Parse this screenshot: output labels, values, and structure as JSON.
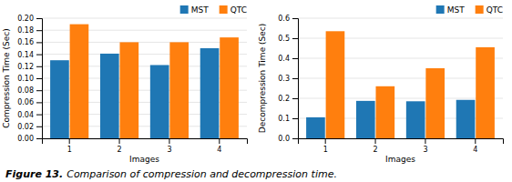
{
  "chart_data": [
    {
      "type": "bar",
      "categories": [
        "1",
        "2",
        "3",
        "4"
      ],
      "x_label": "Images",
      "y_label": "Compression Time (Sec)",
      "series": [
        {
          "name": "MST",
          "values": [
            0.13,
            0.141,
            0.122,
            0.15
          ]
        },
        {
          "name": "QTC",
          "values": [
            0.19,
            0.16,
            0.16,
            0.168
          ]
        }
      ],
      "ylim": [
        0,
        0.2
      ],
      "yticks": [
        {
          "value": 0,
          "label": "0.00"
        },
        0.02,
        0.04,
        0.06,
        0.08,
        {
          "value": 0.1,
          "label": "0.10"
        },
        0.12,
        0.14,
        0.16,
        0.18,
        {
          "value": 0.2,
          "label": "0.20"
        }
      ],
      "grid": true,
      "legend": "upper right",
      "annotations": [
        "Figure 13.",
        "Comparison of compression and decompression time."
      ]
    },
    {
      "type": "bar",
      "categories": [
        "1",
        "2",
        "3",
        "4"
      ],
      "x_label": "Images",
      "y_label": "Decompression Time (Sec)",
      "series": [
        {
          "name": "MST",
          "values": [
            0.105,
            0.187,
            0.185,
            0.192
          ]
        },
        {
          "name": "QTC",
          "values": [
            0.535,
            0.26,
            0.35,
            0.455
          ]
        }
      ],
      "ylim": [
        0,
        0.6
      ],
      "yticks": [
        {
          "value": 0,
          "label": "0.0"
        },
        0.1,
        0.2,
        0.3,
        0.4,
        0.5,
        0.6
      ],
      "grid": true,
      "legend": "upper right"
    }
  ]
}
